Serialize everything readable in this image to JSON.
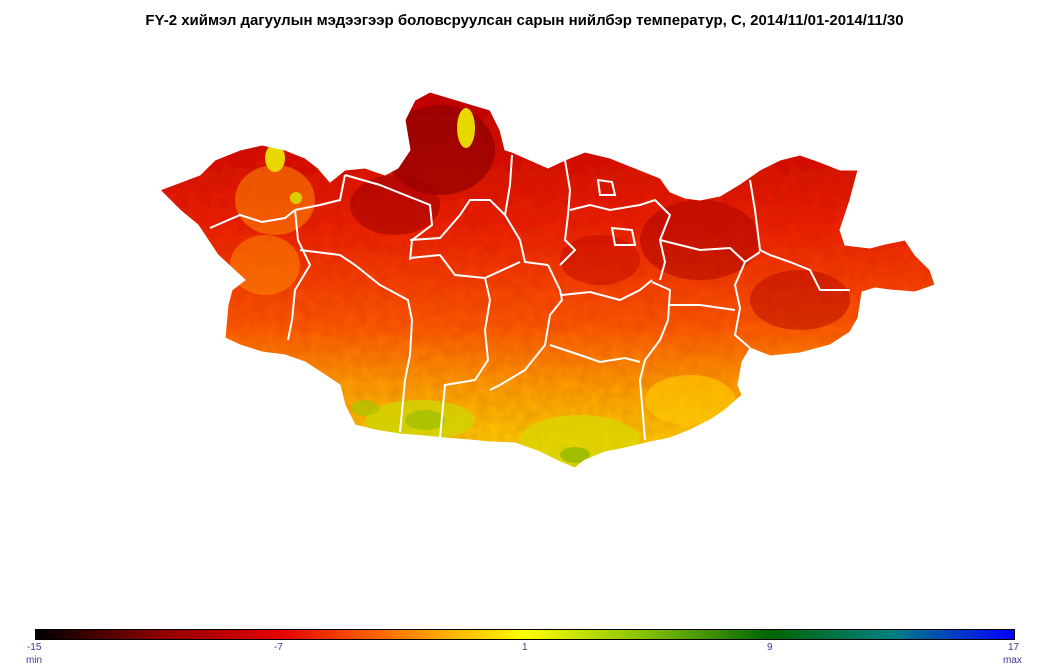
{
  "title": "FY-2 хиймэл дагуулын мэдээгээр боловсруулсан  сарын нийлбэр температур, С, 2014/11/01-2014/11/30",
  "colorbar": {
    "ticks": [
      {
        "value": -15,
        "label": "-15"
      },
      {
        "value": -7,
        "label": "-7"
      },
      {
        "value": 1,
        "label": "1"
      },
      {
        "value": 9,
        "label": "9"
      },
      {
        "value": 17,
        "label": "17"
      }
    ],
    "min_label": "min",
    "max_label": "max",
    "range": [
      -15,
      17
    ],
    "stops": [
      {
        "value": -15,
        "color": "#000000"
      },
      {
        "value": -11,
        "color": "#8b0000"
      },
      {
        "value": -7,
        "color": "#e60000"
      },
      {
        "value": -3,
        "color": "#ff8000"
      },
      {
        "value": 1,
        "color": "#ffff00"
      },
      {
        "value": 5,
        "color": "#80c000"
      },
      {
        "value": 9,
        "color": "#006400"
      },
      {
        "value": 13,
        "color": "#008080"
      },
      {
        "value": 17,
        "color": "#0000ff"
      }
    ]
  },
  "colors": {
    "boundary": "#ffffff",
    "cold": "#b00000",
    "mid": "#ff3000",
    "warm": "#ffb000",
    "hot": "#e8e800",
    "green": "#90c000"
  }
}
